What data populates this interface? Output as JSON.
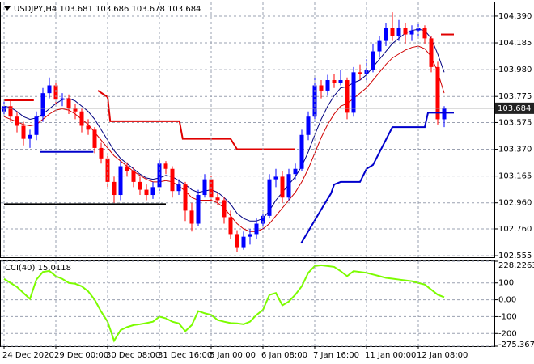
{
  "chart_data": [
    {
      "type": "candlestick",
      "title": "USDJPY,H4  103.681 103.686 103.678 103.684",
      "categories": [
        "24 Dec 2020",
        null,
        null,
        null,
        null,
        null,
        null,
        null,
        "29 Dec 00:00",
        null,
        null,
        null,
        null,
        null,
        null,
        null,
        "30 Dec 08:00",
        null,
        null,
        null,
        null,
        null,
        null,
        null,
        "31 Dec 16:00",
        null,
        null,
        null,
        null,
        null,
        null,
        null,
        "5 Jan 00:00",
        null,
        null,
        null,
        null,
        null,
        null,
        null,
        "6 Jan 08:00",
        null,
        null,
        null,
        null,
        null,
        null,
        null,
        "7 Jan 16:00",
        null,
        null,
        null,
        null,
        null,
        null,
        null,
        "11 Jan 00:00",
        null,
        null,
        null,
        null,
        null,
        null,
        null,
        "12 Jan 08:00",
        null,
        null,
        null,
        null
      ],
      "ohlc": [
        [
          103.66,
          103.75,
          103.62,
          103.7
        ],
        [
          103.7,
          103.74,
          103.58,
          103.62
        ],
        [
          103.62,
          103.66,
          103.5,
          103.55
        ],
        [
          103.55,
          103.58,
          103.4,
          103.45
        ],
        [
          103.45,
          103.52,
          103.38,
          103.48
        ],
        [
          103.48,
          103.66,
          103.44,
          103.62
        ],
        [
          103.62,
          103.84,
          103.58,
          103.8
        ],
        [
          103.8,
          103.92,
          103.76,
          103.86
        ],
        [
          103.86,
          103.88,
          103.7,
          103.75
        ],
        [
          103.75,
          103.8,
          103.7,
          103.76
        ],
        [
          103.76,
          103.79,
          103.64,
          103.68
        ],
        [
          103.68,
          103.72,
          103.6,
          103.66
        ],
        [
          103.66,
          103.68,
          103.5,
          103.55
        ],
        [
          103.55,
          103.6,
          103.48,
          103.52
        ],
        [
          103.52,
          103.54,
          103.34,
          103.38
        ],
        [
          103.38,
          103.42,
          103.26,
          103.3
        ],
        [
          103.3,
          103.32,
          103.08,
          103.12
        ],
        [
          103.12,
          103.16,
          102.96,
          103.02
        ],
        [
          103.02,
          103.28,
          102.98,
          103.24
        ],
        [
          103.24,
          103.27,
          103.16,
          103.2
        ],
        [
          103.2,
          103.23,
          103.08,
          103.12
        ],
        [
          103.12,
          103.16,
          103.02,
          103.06
        ],
        [
          103.06,
          103.1,
          102.98,
          103.02
        ],
        [
          103.02,
          103.12,
          102.99,
          103.08
        ],
        [
          103.08,
          103.3,
          103.05,
          103.26
        ],
        [
          103.26,
          103.28,
          103.18,
          103.22
        ],
        [
          103.22,
          103.24,
          103.0,
          103.05
        ],
        [
          103.05,
          103.14,
          103.02,
          103.1
        ],
        [
          103.1,
          103.12,
          102.82,
          102.9
        ],
        [
          102.9,
          102.96,
          102.74,
          102.8
        ],
        [
          102.8,
          103.06,
          102.78,
          103.02
        ],
        [
          103.02,
          103.18,
          103.0,
          103.14
        ],
        [
          103.14,
          103.17,
          102.96,
          103.0
        ],
        [
          103.0,
          103.04,
          102.94,
          102.98
        ],
        [
          102.98,
          103.0,
          102.8,
          102.85
        ],
        [
          102.85,
          102.9,
          102.68,
          102.72
        ],
        [
          102.72,
          102.75,
          102.58,
          102.62
        ],
        [
          102.62,
          102.74,
          102.6,
          102.7
        ],
        [
          102.7,
          102.76,
          102.64,
          102.72
        ],
        [
          102.72,
          102.84,
          102.68,
          102.8
        ],
        [
          102.8,
          102.9,
          102.76,
          102.86
        ],
        [
          102.86,
          103.18,
          102.84,
          103.14
        ],
        [
          103.14,
          103.22,
          103.08,
          103.16
        ],
        [
          103.16,
          103.2,
          102.96,
          103.0
        ],
        [
          103.0,
          103.22,
          102.98,
          103.18
        ],
        [
          103.18,
          103.26,
          103.14,
          103.22
        ],
        [
          103.22,
          103.52,
          103.2,
          103.48
        ],
        [
          103.48,
          103.66,
          103.44,
          103.62
        ],
        [
          103.62,
          103.92,
          103.58,
          103.86
        ],
        [
          103.86,
          103.9,
          103.76,
          103.82
        ],
        [
          103.82,
          103.94,
          103.78,
          103.9
        ],
        [
          103.9,
          103.95,
          103.84,
          103.88
        ],
        [
          103.88,
          103.98,
          103.86,
          103.9
        ],
        [
          103.9,
          103.92,
          103.6,
          103.65
        ],
        [
          103.65,
          104.0,
          103.62,
          103.96
        ],
        [
          103.96,
          104.02,
          103.9,
          103.95
        ],
        [
          103.95,
          104.06,
          103.9,
          103.98
        ],
        [
          103.98,
          104.18,
          103.96,
          104.12
        ],
        [
          104.12,
          104.24,
          104.08,
          104.2
        ],
        [
          104.2,
          104.34,
          104.16,
          104.3
        ],
        [
          104.3,
          104.42,
          104.2,
          104.24
        ],
        [
          104.24,
          104.36,
          104.2,
          104.3
        ],
        [
          104.3,
          104.34,
          104.18,
          104.25
        ],
        [
          104.25,
          104.32,
          104.2,
          104.28
        ],
        [
          104.28,
          104.34,
          104.24,
          104.3
        ],
        [
          104.3,
          104.32,
          104.18,
          104.22
        ],
        [
          104.22,
          104.24,
          103.96,
          104.0
        ],
        [
          104.0,
          104.04,
          103.56,
          103.6
        ],
        [
          103.6,
          103.7,
          103.54,
          103.684
        ]
      ],
      "up_color": "#0000ff",
      "down_color": "#ff0000",
      "series": [
        {
          "color": "#000080",
          "values": [
            103.7,
            103.69,
            103.66,
            103.62,
            103.6,
            103.61,
            103.64,
            103.68,
            103.72,
            103.75,
            103.76,
            103.74,
            103.7,
            103.66,
            103.6,
            103.52,
            103.44,
            103.36,
            103.3,
            103.26,
            103.22,
            103.18,
            103.15,
            103.14,
            103.15,
            103.17,
            103.16,
            103.13,
            103.1,
            103.06,
            103.04,
            103.05,
            103.06,
            103.04,
            103.0,
            102.95,
            102.88,
            102.84,
            102.82,
            102.82,
            102.84,
            102.9,
            102.98,
            103.04,
            103.1,
            103.16,
            103.24,
            103.35,
            103.48,
            103.6,
            103.7,
            103.78,
            103.84,
            103.85,
            103.88,
            103.9,
            103.94,
            104.0,
            104.06,
            104.12,
            104.18,
            104.22,
            104.26,
            104.28,
            104.29,
            104.28,
            104.22,
            104.1,
            103.96
          ]
        },
        {
          "color": "#d00000",
          "values": [
            103.62,
            103.6,
            103.58,
            103.56,
            103.55,
            103.56,
            103.6,
            103.64,
            103.67,
            103.68,
            103.67,
            103.64,
            103.6,
            103.56,
            103.5,
            103.44,
            103.38,
            103.32,
            103.28,
            103.24,
            103.2,
            103.17,
            103.14,
            103.12,
            103.12,
            103.13,
            103.12,
            103.09,
            103.05,
            103.0,
            102.98,
            102.98,
            102.98,
            102.96,
            102.92,
            102.86,
            102.8,
            102.76,
            102.74,
            102.74,
            102.76,
            102.8,
            102.86,
            102.92,
            102.98,
            103.04,
            103.12,
            103.22,
            103.34,
            103.46,
            103.56,
            103.64,
            103.7,
            103.72,
            103.76,
            103.8,
            103.84,
            103.9,
            103.96,
            104.02,
            104.07,
            104.1,
            104.13,
            104.15,
            104.16,
            104.14,
            104.08,
            103.96,
            103.8
          ]
        }
      ],
      "overlays": [
        {
          "color": "#e00000",
          "x": [
            0,
            4.6
          ],
          "values": [
            103.745,
            103.745
          ]
        },
        {
          "color": "#0000cc",
          "x": [
            5.6,
            13.8
          ],
          "values": [
            103.35,
            103.35
          ]
        },
        {
          "color": "#e00000",
          "x": [
            14.5,
            16,
            16.4,
            27.1,
            27.6,
            35,
            36,
            45
          ],
          "values": [
            103.82,
            103.77,
            103.585,
            103.585,
            103.45,
            103.45,
            103.37,
            103.37
          ]
        },
        {
          "color": "#000000",
          "x": [
            0,
            25
          ],
          "values": [
            102.95,
            102.95
          ]
        },
        {
          "color": "#0000cc",
          "x": [
            45.9,
            49.5,
            50.5,
            51,
            52,
            55,
            56,
            57,
            60,
            65,
            65.5,
            69.5
          ],
          "values": [
            102.65,
            102.95,
            103.03,
            103.1,
            103.12,
            103.12,
            103.22,
            103.25,
            103.54,
            103.54,
            103.65,
            103.65
          ]
        },
        {
          "color": "#e00000",
          "x": [
            67.5,
            69.5
          ],
          "values": [
            104.25,
            104.25
          ]
        }
      ],
      "current_price": 103.684,
      "ylim": [
        102.543,
        104.495
      ],
      "yticks": [
        {
          "value": 104.39,
          "label": "104.390"
        },
        104.185,
        {
          "value": 103.98,
          "label": "103.980"
        },
        103.775,
        103.575,
        {
          "value": 103.37,
          "label": "103.370"
        },
        103.165,
        {
          "value": 102.96,
          "label": "102.960"
        },
        {
          "value": 102.76,
          "label": "102.760"
        },
        102.555
      ],
      "grid": true
    },
    {
      "type": "line",
      "title": "CCI(40) 15.0118",
      "color": "#7cfc00",
      "values": [
        124,
        100,
        76,
        40,
        5,
        120,
        165,
        171,
        140,
        124,
        100,
        95,
        80,
        50,
        0,
        -70,
        -130,
        -243,
        -180,
        -162,
        -150,
        -145,
        -138,
        -130,
        -100,
        -110,
        -130,
        -140,
        -186,
        -150,
        -67,
        -80,
        -90,
        -120,
        -130,
        -138,
        -140,
        -145,
        -130,
        -90,
        -60,
        29,
        40,
        -33,
        -10,
        30,
        80,
        160,
        200,
        205,
        200,
        195,
        170,
        140,
        170,
        165,
        160,
        150,
        140,
        130,
        125,
        120,
        115,
        110,
        100,
        90,
        60,
        30,
        15.0118
      ],
      "ylim": [
        -275.3678,
        228.2263
      ],
      "yticks": [
        228.2263,
        100,
        {
          "value": 0,
          "label": "0.00"
        },
        -100,
        -200,
        -275.3678
      ],
      "grid": true
    }
  ]
}
